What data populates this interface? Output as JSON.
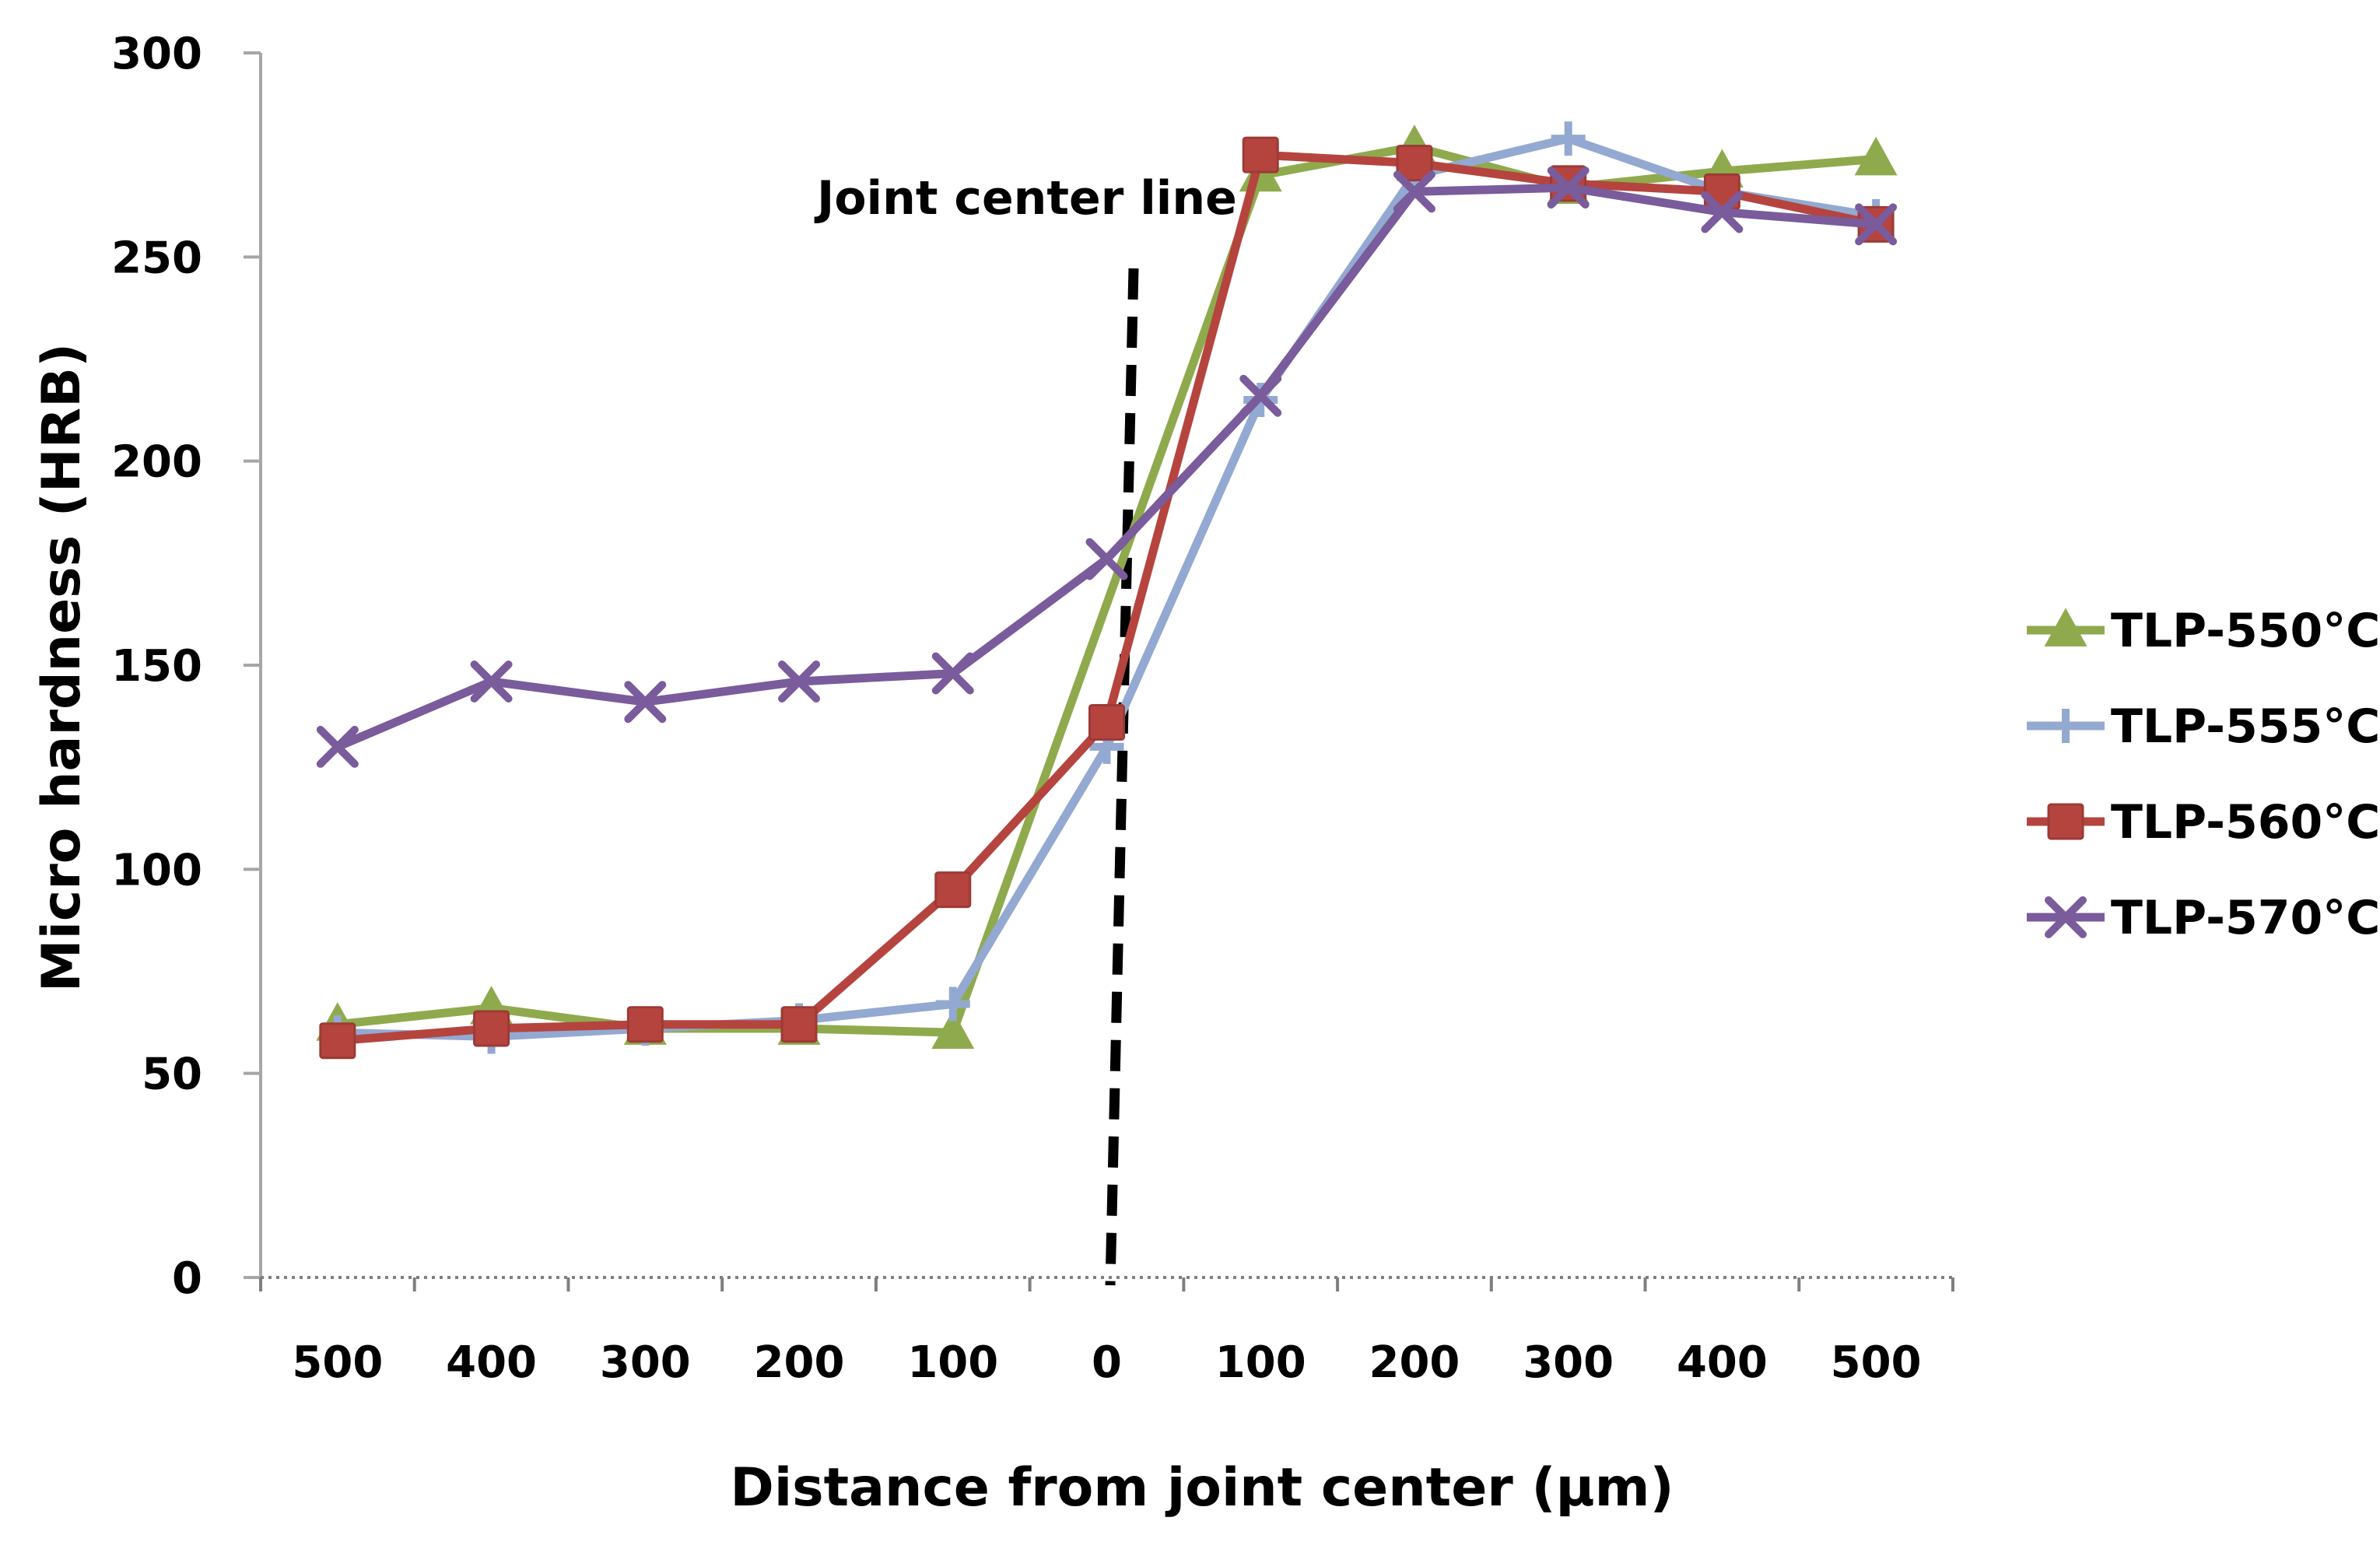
{
  "chart_data": {
    "type": "line",
    "title": "",
    "xlabel": "Distance from joint center (µm)",
    "ylabel": "Micro hardness (HRB)",
    "categories": [
      "500",
      "400",
      "300",
      "200",
      "100",
      "0",
      "100",
      "200",
      "300",
      "400",
      "500"
    ],
    "ylim": [
      0,
      300
    ],
    "yticks": [
      0,
      50,
      100,
      150,
      200,
      250,
      300
    ],
    "grid": false,
    "legend_position": "right",
    "annotation": "Joint center line",
    "series": [
      {
        "name": "TLP-550°C",
        "color": "#8faa4d",
        "marker": "triangle",
        "values": [
          62,
          66,
          61,
          61,
          60,
          null,
          270,
          277,
          267,
          271,
          274
        ]
      },
      {
        "name": "TLP-555°C",
        "color": "#93a9d1",
        "marker": "plus",
        "values": [
          60,
          59,
          61,
          63,
          67,
          130,
          215,
          270,
          279,
          266,
          260
        ]
      },
      {
        "name": "TLP-560°C",
        "color": "#b5443f",
        "marker": "square",
        "values": [
          58,
          61,
          62,
          62,
          95,
          136,
          275,
          273,
          268,
          266,
          258
        ]
      },
      {
        "name": "TLP-570°C",
        "color": "#7a5b9b",
        "marker": "x",
        "values": [
          130,
          146,
          141,
          146,
          148,
          176,
          216,
          266,
          267,
          261,
          258
        ]
      }
    ]
  }
}
